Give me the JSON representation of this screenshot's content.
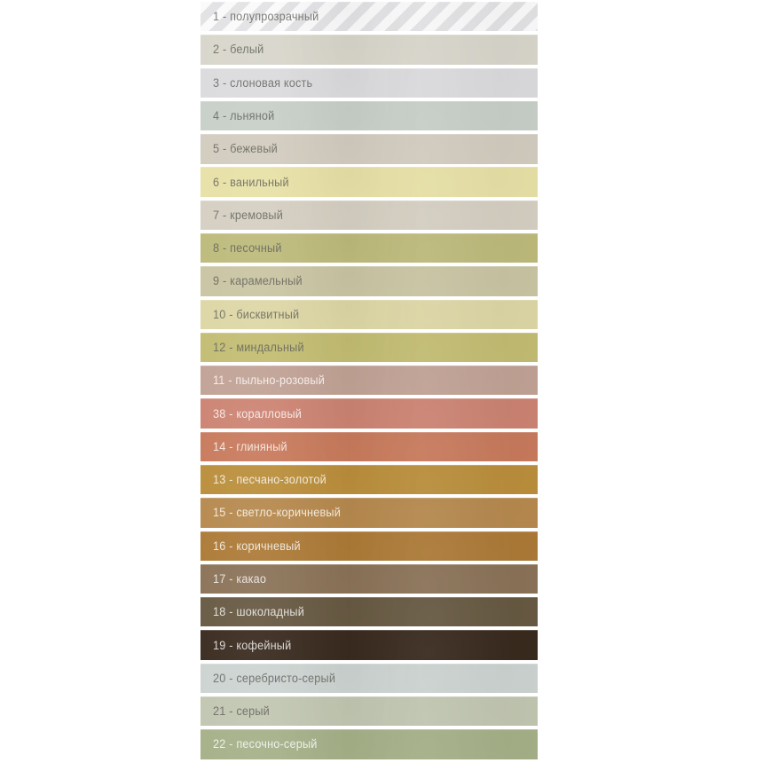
{
  "page": {
    "background": "#ffffff",
    "description_colors": {
      "dark_label_text": "rgba(96,96,90,0.80)",
      "light_label_text": "rgba(255,255,255,0.80)"
    }
  },
  "chart_data": {
    "type": "table",
    "title": "",
    "columns": [
      "code",
      "name"
    ],
    "legend_position": "none",
    "rows": [
      {
        "code": "1",
        "name": "полупрозрачный",
        "label": "1 - полупрозрачный",
        "color": "#f9f9fa",
        "pattern": "diagonal-stripes",
        "stripe_light": "#fafafb",
        "stripe_dark": "#e2e2e5",
        "text": "dark"
      },
      {
        "code": "2",
        "name": "белый",
        "label": "2 - белый",
        "color": "#d8d6cb",
        "text": "dark"
      },
      {
        "code": "3",
        "name": "слоновая кость",
        "label": "3 - слоновая кость",
        "color": "#dbdbde",
        "text": "dark"
      },
      {
        "code": "4",
        "name": "льняной",
        "label": "4 - льняной",
        "color": "#c7cfc8",
        "text": "dark"
      },
      {
        "code": "5",
        "name": "бежевый",
        "label": "5 - бежевый",
        "color": "#d2ccbf",
        "text": "dark"
      },
      {
        "code": "6",
        "name": "ванильный",
        "label": "6 - ванильный",
        "color": "#e7e0a6",
        "text": "dark"
      },
      {
        "code": "7",
        "name": "кремовый",
        "label": "7 - кремовый",
        "color": "#d5cfc2",
        "text": "dark"
      },
      {
        "code": "8",
        "name": "песочный",
        "label": "8 - песочный",
        "color": "#bdba7b",
        "text": "dark"
      },
      {
        "code": "9",
        "name": "карамельный",
        "label": "9 - карамельный",
        "color": "#c9c4a2",
        "text": "dark"
      },
      {
        "code": "10",
        "name": "бисквитный",
        "label": "10 - бисквитный",
        "color": "#ddd6a5",
        "text": "dark"
      },
      {
        "code": "12",
        "name": "миндальный",
        "label": "12 - миндальный",
        "color": "#c2bc72",
        "text": "dark"
      },
      {
        "code": "11",
        "name": "пыльно-розовый",
        "label": "11 - пыльно-розовый",
        "color": "#c1a295",
        "text": "light"
      },
      {
        "code": "38",
        "name": "коралловый",
        "label": "38 - коралловый",
        "color": "#cc8372",
        "text": "light"
      },
      {
        "code": "14",
        "name": "глиняный",
        "label": "14 - глиняный",
        "color": "#c87a5c",
        "text": "light"
      },
      {
        "code": "13",
        "name": "песчано-золотой",
        "label": "13 - песчано-золотой",
        "color": "#ba8e3b",
        "text": "light"
      },
      {
        "code": "15",
        "name": "светло-коричневый",
        "label": "15 - светло-коричневый",
        "color": "#b6894e",
        "text": "light"
      },
      {
        "code": "16",
        "name": "коричневый",
        "label": "16 - коричневый",
        "color": "#ac7a37",
        "text": "light"
      },
      {
        "code": "17",
        "name": "какао",
        "label": "17 - какао",
        "color": "#8a7257",
        "text": "light"
      },
      {
        "code": "18",
        "name": "шоколадный",
        "label": "18 - шоколадный",
        "color": "#675942",
        "text": "light"
      },
      {
        "code": "19",
        "name": "кофейный",
        "label": "19 - кофейный",
        "color": "#392a1e",
        "text": "light"
      },
      {
        "code": "20",
        "name": "серебристо-серый",
        "label": "20 - серебристо-серый",
        "color": "#ccd3d1",
        "text": "dark"
      },
      {
        "code": "21",
        "name": "серый",
        "label": "21 - серый",
        "color": "#c1c6b1",
        "text": "dark"
      },
      {
        "code": "22",
        "name": "песочно-серый",
        "label": "22 - песочно-серый",
        "color": "#a5b088",
        "text": "light"
      }
    ]
  }
}
